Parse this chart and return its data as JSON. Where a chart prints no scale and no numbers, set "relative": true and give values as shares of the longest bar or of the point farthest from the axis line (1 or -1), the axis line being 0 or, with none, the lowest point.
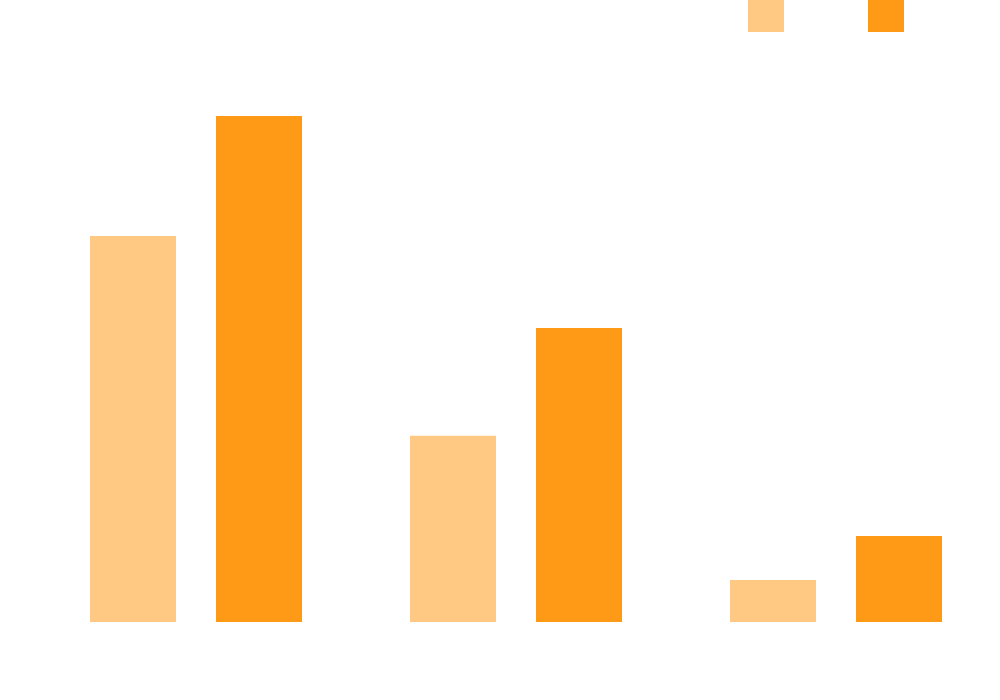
{
  "chart_data": {
    "type": "bar",
    "relative": true,
    "categories": [
      null,
      null,
      null
    ],
    "grid": false,
    "series": [
      {
        "color": "#ffc983",
        "values": [
          0.763,
          0.368,
          0.083
        ]
      },
      {
        "color": "#ff9a16",
        "values": [
          1,
          0.581,
          0.17
        ]
      }
    ]
  }
}
